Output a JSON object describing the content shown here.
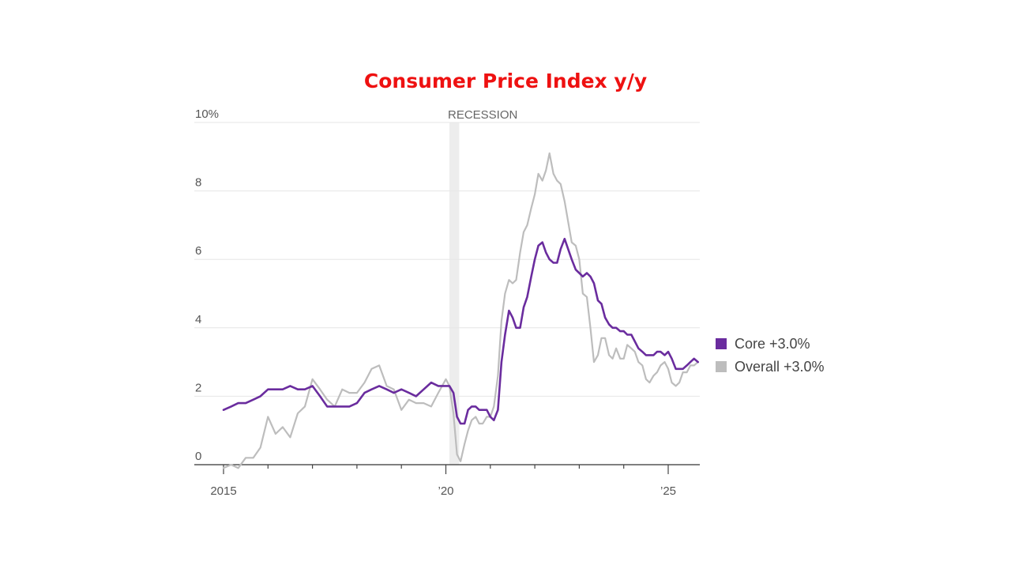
{
  "chart_data": {
    "type": "line",
    "title": "Consumer Price Index y/y",
    "xlabel": "",
    "ylabel": "",
    "x_range": [
      2015.0,
      2025.8
    ],
    "ylim": [
      0,
      10
    ],
    "y_ticks": [
      {
        "value": 0,
        "label": "0"
      },
      {
        "value": 2,
        "label": "2"
      },
      {
        "value": 4,
        "label": "4"
      },
      {
        "value": 6,
        "label": "6"
      },
      {
        "value": 8,
        "label": "8"
      },
      {
        "value": 10,
        "label": "10%"
      }
    ],
    "x_ticks": [
      {
        "value": 2015,
        "label": "2015"
      },
      {
        "value": 2016,
        "label": ""
      },
      {
        "value": 2017,
        "label": ""
      },
      {
        "value": 2018,
        "label": ""
      },
      {
        "value": 2019,
        "label": ""
      },
      {
        "value": 2020,
        "label": "’20"
      },
      {
        "value": 2021,
        "label": ""
      },
      {
        "value": 2022,
        "label": ""
      },
      {
        "value": 2023,
        "label": ""
      },
      {
        "value": 2024,
        "label": ""
      },
      {
        "value": 2025,
        "label": "’25"
      }
    ],
    "grid": "horizontal",
    "legend_position": "right",
    "recession": {
      "label": "RECESSION",
      "start": 2020.08,
      "end": 2020.3
    },
    "series": [
      {
        "name": "Core +3.0%",
        "color": "#6a2c9e",
        "x": [
          2015.0,
          2015.17,
          2015.33,
          2015.5,
          2015.67,
          2015.83,
          2016.0,
          2016.17,
          2016.33,
          2016.5,
          2016.67,
          2016.83,
          2017.0,
          2017.17,
          2017.33,
          2017.5,
          2017.67,
          2017.83,
          2018.0,
          2018.17,
          2018.33,
          2018.5,
          2018.67,
          2018.83,
          2019.0,
          2019.17,
          2019.33,
          2019.5,
          2019.67,
          2019.83,
          2020.0,
          2020.08,
          2020.17,
          2020.25,
          2020.33,
          2020.42,
          2020.5,
          2020.58,
          2020.67,
          2020.75,
          2020.83,
          2020.92,
          2021.0,
          2021.08,
          2021.17,
          2021.25,
          2021.33,
          2021.42,
          2021.5,
          2021.58,
          2021.67,
          2021.75,
          2021.83,
          2021.92,
          2022.0,
          2022.08,
          2022.17,
          2022.25,
          2022.33,
          2022.42,
          2022.5,
          2022.58,
          2022.67,
          2022.75,
          2022.83,
          2022.92,
          2023.0,
          2023.08,
          2023.17,
          2023.25,
          2023.33,
          2023.42,
          2023.5,
          2023.58,
          2023.67,
          2023.75,
          2023.83,
          2023.92,
          2024.0,
          2024.08,
          2024.17,
          2024.25,
          2024.33,
          2024.42,
          2024.5,
          2024.58,
          2024.67,
          2024.75,
          2024.83,
          2024.92,
          2025.0,
          2025.08,
          2025.17,
          2025.25,
          2025.33,
          2025.42,
          2025.5,
          2025.58,
          2025.67
        ],
        "values": [
          1.6,
          1.7,
          1.8,
          1.8,
          1.9,
          2.0,
          2.2,
          2.2,
          2.2,
          2.3,
          2.2,
          2.2,
          2.3,
          2.0,
          1.7,
          1.7,
          1.7,
          1.7,
          1.8,
          2.1,
          2.2,
          2.3,
          2.2,
          2.1,
          2.2,
          2.1,
          2.0,
          2.2,
          2.4,
          2.3,
          2.3,
          2.3,
          2.1,
          1.4,
          1.2,
          1.2,
          1.6,
          1.7,
          1.7,
          1.6,
          1.6,
          1.6,
          1.4,
          1.3,
          1.6,
          3.0,
          3.8,
          4.5,
          4.3,
          4.0,
          4.0,
          4.6,
          4.9,
          5.5,
          6.0,
          6.4,
          6.5,
          6.2,
          6.0,
          5.9,
          5.9,
          6.3,
          6.6,
          6.3,
          6.0,
          5.7,
          5.6,
          5.5,
          5.6,
          5.5,
          5.3,
          4.8,
          4.7,
          4.3,
          4.1,
          4.0,
          4.0,
          3.9,
          3.9,
          3.8,
          3.8,
          3.6,
          3.4,
          3.3,
          3.2,
          3.2,
          3.2,
          3.3,
          3.3,
          3.2,
          3.3,
          3.1,
          2.8,
          2.8,
          2.8,
          2.9,
          3.0,
          3.1,
          3.0
        ]
      },
      {
        "name": "Overall +3.0%",
        "color": "#bdbdbd",
        "x": [
          2015.0,
          2015.17,
          2015.33,
          2015.5,
          2015.67,
          2015.83,
          2016.0,
          2016.17,
          2016.33,
          2016.5,
          2016.67,
          2016.83,
          2017.0,
          2017.17,
          2017.33,
          2017.5,
          2017.67,
          2017.83,
          2018.0,
          2018.17,
          2018.33,
          2018.5,
          2018.67,
          2018.83,
          2019.0,
          2019.17,
          2019.33,
          2019.5,
          2019.67,
          2019.83,
          2020.0,
          2020.08,
          2020.17,
          2020.25,
          2020.33,
          2020.42,
          2020.5,
          2020.58,
          2020.67,
          2020.75,
          2020.83,
          2020.92,
          2021.0,
          2021.08,
          2021.17,
          2021.25,
          2021.33,
          2021.42,
          2021.5,
          2021.58,
          2021.67,
          2021.75,
          2021.83,
          2021.92,
          2022.0,
          2022.08,
          2022.17,
          2022.25,
          2022.33,
          2022.42,
          2022.5,
          2022.58,
          2022.67,
          2022.75,
          2022.83,
          2022.92,
          2023.0,
          2023.08,
          2023.17,
          2023.25,
          2023.33,
          2023.42,
          2023.5,
          2023.58,
          2023.67,
          2023.75,
          2023.83,
          2023.92,
          2024.0,
          2024.08,
          2024.17,
          2024.25,
          2024.33,
          2024.42,
          2024.5,
          2024.58,
          2024.67,
          2024.75,
          2024.83,
          2024.92,
          2025.0,
          2025.08,
          2025.17,
          2025.25,
          2025.33,
          2025.42,
          2025.5,
          2025.58,
          2025.67
        ],
        "values": [
          -0.1,
          0.0,
          -0.1,
          0.2,
          0.2,
          0.5,
          1.4,
          0.9,
          1.1,
          0.8,
          1.5,
          1.7,
          2.5,
          2.2,
          1.9,
          1.7,
          2.2,
          2.1,
          2.1,
          2.4,
          2.8,
          2.9,
          2.3,
          2.2,
          1.6,
          1.9,
          1.8,
          1.8,
          1.7,
          2.1,
          2.5,
          2.3,
          1.5,
          0.3,
          0.1,
          0.6,
          1.0,
          1.3,
          1.4,
          1.2,
          1.2,
          1.4,
          1.4,
          1.7,
          2.6,
          4.2,
          5.0,
          5.4,
          5.3,
          5.4,
          6.2,
          6.8,
          7.0,
          7.5,
          7.9,
          8.5,
          8.3,
          8.6,
          9.1,
          8.5,
          8.3,
          8.2,
          7.7,
          7.1,
          6.5,
          6.4,
          6.0,
          5.0,
          4.9,
          4.0,
          3.0,
          3.2,
          3.7,
          3.7,
          3.2,
          3.1,
          3.4,
          3.1,
          3.1,
          3.5,
          3.4,
          3.3,
          3.0,
          2.9,
          2.5,
          2.4,
          2.6,
          2.7,
          2.9,
          3.0,
          2.8,
          2.4,
          2.3,
          2.4,
          2.7,
          2.7,
          2.9,
          2.9,
          3.0
        ]
      }
    ]
  }
}
